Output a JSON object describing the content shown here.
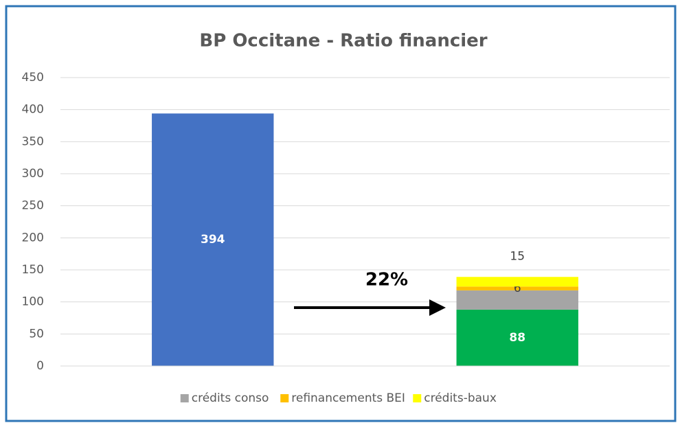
{
  "chart_data": {
    "type": "stacked_bar",
    "title": "BP Occitane - Ratio financier",
    "categories": [
      null,
      null
    ],
    "series": [
      {
        "colors": [
          "#4472c4",
          "#00b050"
        ],
        "values": [
          394,
          88
        ],
        "data_labels": "inside"
      },
      {
        "name": "crédits conso",
        "color": "#a5a5a5",
        "values": [
          null,
          30
        ]
      },
      {
        "name": "refinancements BEI",
        "color": "#ffc000",
        "values": [
          null,
          6
        ],
        "data_labels": "inside"
      },
      {
        "name": "crédits-baux",
        "color": "#ffff00",
        "values": [
          null,
          15
        ],
        "data_labels": "above"
      }
    ],
    "annotations": [
      "22%"
    ],
    "ylim": [
      0,
      450
    ],
    "yticks": [
      0,
      50,
      100,
      150,
      200,
      250,
      300,
      350,
      400,
      450
    ],
    "grid": true,
    "legend": "bottom"
  }
}
